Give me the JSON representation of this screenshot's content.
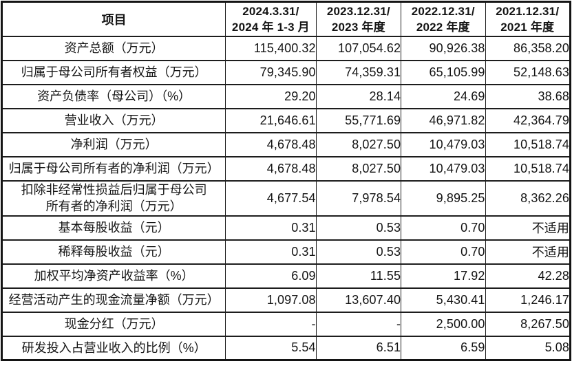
{
  "colors": {
    "border": "#1d1d1d",
    "background": "#ffffff",
    "text": "#141414"
  },
  "table": {
    "header": {
      "item_label": "项目",
      "periods": [
        "2024.3.31/\n2024 年 1-3 月",
        "2023.12.31/\n2023 年度",
        "2022.12.31/\n2022 年度",
        "2021.12.31/\n2021 年度"
      ]
    },
    "rows": [
      {
        "label": "资产总额（万元）",
        "values": [
          "115,400.32",
          "107,054.62",
          "90,926.38",
          "86,358.20"
        ]
      },
      {
        "label": "归属于母公司所有者权益（万元）",
        "values": [
          "79,345.90",
          "74,359.31",
          "65,105.99",
          "52,148.63"
        ]
      },
      {
        "label": "资产负债率（母公司）（%）",
        "values": [
          "29.20",
          "28.14",
          "24.69",
          "38.68"
        ]
      },
      {
        "label": "营业收入（万元）",
        "values": [
          "21,646.61",
          "55,771.69",
          "46,971.82",
          "42,364.79"
        ]
      },
      {
        "label": "净利润（万元）",
        "values": [
          "4,678.48",
          "8,027.50",
          "10,479.03",
          "10,518.74"
        ]
      },
      {
        "label": "归属于母公司所有者的净利润（万元）",
        "values": [
          "4,678.48",
          "8,027.50",
          "10,479.03",
          "10,518.74"
        ]
      },
      {
        "label": "扣除非经常性损益后归属于母公司\n所有者的净利润（万元）",
        "values": [
          "4,677.54",
          "7,978.54",
          "9,895.25",
          "8,362.26"
        ]
      },
      {
        "label": "基本每股收益（元）",
        "values": [
          "0.31",
          "0.53",
          "0.70",
          "不适用"
        ]
      },
      {
        "label": "稀释每股收益（元）",
        "values": [
          "0.31",
          "0.53",
          "0.70",
          "不适用"
        ]
      },
      {
        "label": "加权平均净资产收益率（%）",
        "values": [
          "6.09",
          "11.55",
          "17.92",
          "42.28"
        ]
      },
      {
        "label": "经营活动产生的现金流量净额（万元）",
        "values": [
          "1,097.08",
          "13,607.40",
          "5,430.41",
          "1,246.17"
        ]
      },
      {
        "label": "现金分红（万元）",
        "values": [
          "-",
          "-",
          "2,500.00",
          "8,267.50"
        ]
      },
      {
        "label": "研发投入占营业收入的比例（%）",
        "values": [
          "5.54",
          "6.51",
          "6.59",
          "5.08"
        ]
      }
    ]
  }
}
